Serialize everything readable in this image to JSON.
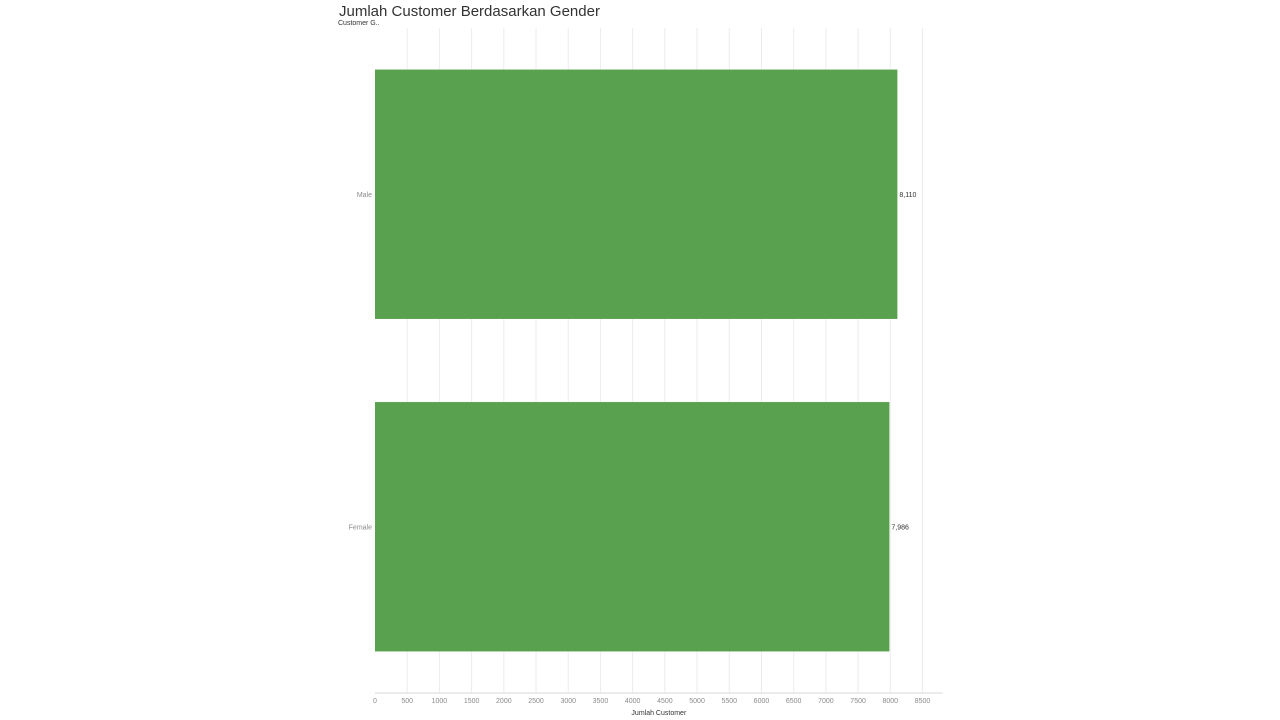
{
  "header": {
    "title": "Jumlah Customer Berdasarkan Gender",
    "row_header": "Customer G.."
  },
  "colors": {
    "bar": "#59a14f",
    "grid": "#ececec",
    "axis": "#d9d9d9"
  },
  "chart_data": {
    "type": "bar",
    "orientation": "horizontal",
    "title": "Jumlah Customer Berdasarkan Gender",
    "ylabel": "Customer G..",
    "xlabel": "Jumlah Customer",
    "categories": [
      "Male",
      "Female"
    ],
    "values": [
      8110,
      7986
    ],
    "value_labels": [
      "8,110",
      "7,986"
    ],
    "xlim": [
      0,
      8500
    ],
    "xticks": [
      0,
      500,
      1000,
      1500,
      2000,
      2500,
      3000,
      3500,
      4000,
      4500,
      5000,
      5500,
      6000,
      6500,
      7000,
      7500,
      8000,
      8500
    ],
    "grid": true,
    "legend": "none"
  }
}
